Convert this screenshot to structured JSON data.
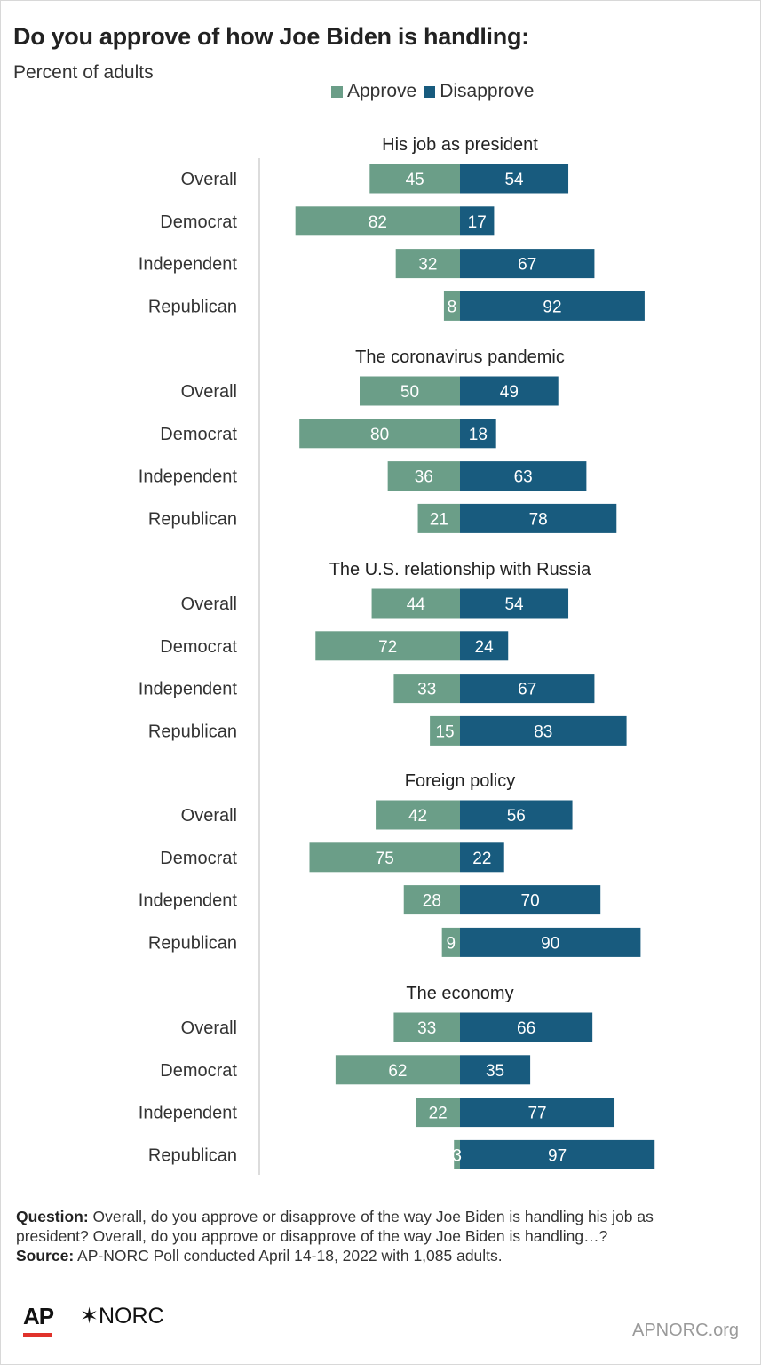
{
  "title": "Do you approve of how Joe Biden is handling:",
  "subtitle": "Percent of adults",
  "colors": {
    "approve": "#6b9e88",
    "disapprove": "#185b7e",
    "axis": "#d0d0d0"
  },
  "chart_data": {
    "type": "bar",
    "orientation": "horizontal-diverging",
    "legend": [
      {
        "label": "Approve"
      },
      {
        "label": "Disapprove"
      }
    ],
    "groups": [
      {
        "title": "His job as president",
        "rows": [
          {
            "label": "Overall",
            "approve": 45,
            "disapprove": 54
          },
          {
            "label": "Democrat",
            "approve": 82,
            "disapprove": 17
          },
          {
            "label": "Independent",
            "approve": 32,
            "disapprove": 67
          },
          {
            "label": "Republican",
            "approve": 8,
            "disapprove": 92
          }
        ]
      },
      {
        "title": "The coronavirus pandemic",
        "rows": [
          {
            "label": "Overall",
            "approve": 50,
            "disapprove": 49
          },
          {
            "label": "Democrat",
            "approve": 80,
            "disapprove": 18
          },
          {
            "label": "Independent",
            "approve": 36,
            "disapprove": 63
          },
          {
            "label": "Republican",
            "approve": 21,
            "disapprove": 78
          }
        ]
      },
      {
        "title": "The U.S. relationship with Russia",
        "rows": [
          {
            "label": "Overall",
            "approve": 44,
            "disapprove": 54
          },
          {
            "label": "Democrat",
            "approve": 72,
            "disapprove": 24
          },
          {
            "label": "Independent",
            "approve": 33,
            "disapprove": 67
          },
          {
            "label": "Republican",
            "approve": 15,
            "disapprove": 83
          }
        ]
      },
      {
        "title": "Foreign policy",
        "rows": [
          {
            "label": "Overall",
            "approve": 42,
            "disapprove": 56
          },
          {
            "label": "Democrat",
            "approve": 75,
            "disapprove": 22
          },
          {
            "label": "Independent",
            "approve": 28,
            "disapprove": 70
          },
          {
            "label": "Republican",
            "approve": 9,
            "disapprove": 90
          }
        ]
      },
      {
        "title": "The economy",
        "rows": [
          {
            "label": "Overall",
            "approve": 33,
            "disapprove": 66
          },
          {
            "label": "Democrat",
            "approve": 62,
            "disapprove": 35
          },
          {
            "label": "Independent",
            "approve": 22,
            "disapprove": 77
          },
          {
            "label": "Republican",
            "approve": 3,
            "disapprove": 97
          }
        ]
      }
    ]
  },
  "footer": {
    "question_label": "Question:",
    "question_text": " Overall, do you approve or disapprove of the way Joe Biden is handling his job as president? Overall, do you approve or disapprove of the way Joe Biden is handling…?",
    "source_label": "Source:",
    "source_text": " AP-NORC Poll conducted April 14-18, 2022 with 1,085 adults."
  },
  "branding": {
    "ap": "AP",
    "norc": "✶NORC",
    "site": "APNORC.org"
  }
}
